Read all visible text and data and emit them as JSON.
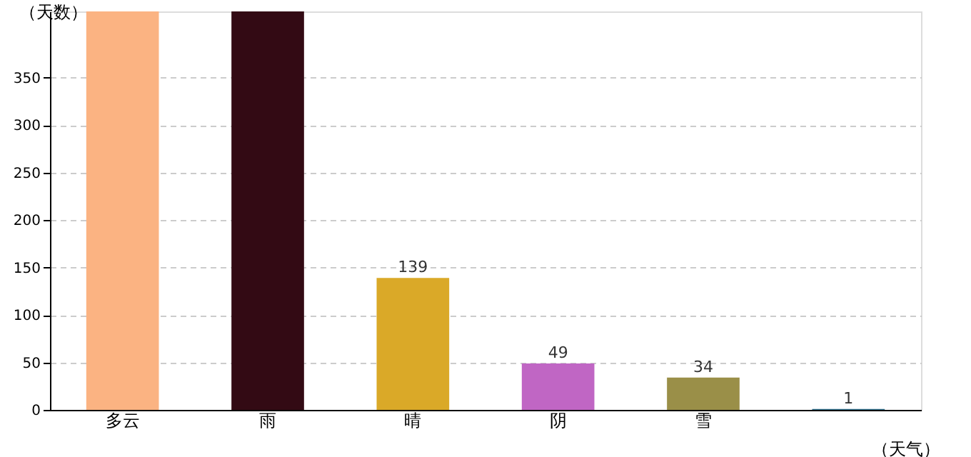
{
  "chart_data": {
    "type": "bar",
    "ylabel": "（天数）",
    "xlabel": "（天气）",
    "categories": [
      "多云",
      "雨",
      "晴",
      "阴",
      "雪",
      null
    ],
    "values": [
      420,
      420,
      139,
      49,
      34,
      1
    ],
    "value_labels": [
      null,
      null,
      "139",
      "49",
      "34",
      "1"
    ],
    "colors": [
      "#fbb382",
      "#330a14",
      "#daa928",
      "#c066c4",
      "#9a8f48",
      "#2a6e8c"
    ],
    "ylim": [
      0,
      420
    ],
    "yticks": [
      0,
      50,
      100,
      150,
      200,
      250,
      300,
      350
    ],
    "grid": "y",
    "legend": false
  }
}
